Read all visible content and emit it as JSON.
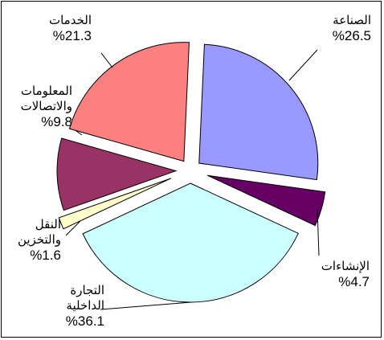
{
  "chart_data": {
    "type": "pie",
    "title": "",
    "slices": [
      {
        "name": "الصناعة",
        "lines": [
          "الصناعة"
        ],
        "value_label": "%26.5",
        "value": 26.5,
        "color": "#9999ff"
      },
      {
        "name": "الإنشاءات",
        "lines": [
          "الإنشاءات"
        ],
        "value_label": "%4.7",
        "value": 4.7,
        "color": "#660066"
      },
      {
        "name": "التجارة الداخلية",
        "lines": [
          "التجارة",
          "الداخلية"
        ],
        "value_label": "%36.1",
        "value": 36.1,
        "color": "#ccffff"
      },
      {
        "name": "النقل والتخزين",
        "lines": [
          "النقل",
          "والتخزين"
        ],
        "value_label": "%1.6",
        "value": 1.6,
        "color": "#ffffcc"
      },
      {
        "name": "المعلومات والاتصالات",
        "lines": [
          "المعلومات",
          "والاتصالات"
        ],
        "value_label": "%9.8",
        "value": 9.8,
        "color": "#993366"
      },
      {
        "name": "الخدمات",
        "lines": [
          "الخدمات"
        ],
        "value_label": "%21.3",
        "value": 21.3,
        "color": "#ff8080"
      }
    ],
    "exploded": true,
    "legend": "none"
  }
}
